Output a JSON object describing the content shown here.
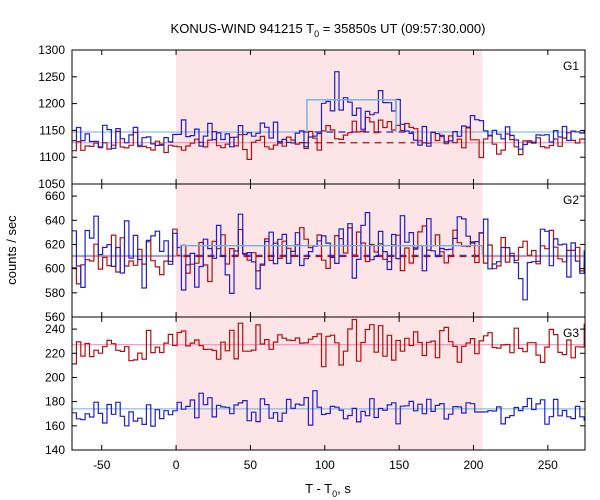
{
  "chart_data": {
    "type": "line",
    "title": "KONUS-WIND 941215 T",
    "title_sub": "0",
    "title_rest": " = 35850s UT (09:57:30.000)",
    "ylabel": "counts / sec",
    "xlabel": "T - T",
    "xlabel_sub": "0",
    "xlabel_rest": ", s",
    "xlim": [
      -70,
      275
    ],
    "xticks": [
      -50,
      0,
      50,
      100,
      150,
      200,
      250
    ],
    "highlight": {
      "from": 0,
      "to": 206,
      "color": "#fde4e6"
    },
    "colors": {
      "red": "#b01010",
      "blue": "#2020c8",
      "pink": "#f080b0",
      "cyan": "#70b0e0"
    },
    "panels": [
      {
        "name": "G1",
        "ylim": [
          1050,
          1300
        ],
        "yticks": [
          1050,
          1100,
          1150,
          1200,
          1250,
          1300
        ],
        "series": [
          {
            "color": "red",
            "base": 1126,
            "noise": 11,
            "seed": 11,
            "bumps": [
              {
                "from": 95,
                "to": 160,
                "add": 28
              }
            ]
          },
          {
            "color": "blue",
            "base": 1140,
            "noise": 14,
            "seed": 23,
            "bumps": [
              {
                "from": 95,
                "to": 150,
                "add": 65
              },
              {
                "from": 190,
                "to": 206,
                "add": 25
              }
            ]
          }
        ],
        "backgrounds": [
          {
            "color": "pink",
            "value": 1127,
            "dashed_from": 85,
            "dashed_to": 160
          },
          {
            "color": "cyan",
            "value": 1147,
            "dashed_from": 85,
            "dashed_to": 160
          }
        ],
        "model": [
          {
            "from": 88,
            "to": 148,
            "value": 1207
          }
        ]
      },
      {
        "name": "G2",
        "ylim": [
          560,
          670
        ],
        "yticks": [
          560,
          580,
          600,
          620,
          640,
          660
        ],
        "series": [
          {
            "color": "red",
            "base": 610,
            "noise": 10,
            "seed": 37,
            "bumps": [
              {
                "from": 60,
                "to": 206,
                "add": 8
              }
            ]
          },
          {
            "color": "blue",
            "base": 612,
            "noise": 15,
            "seed": 41,
            "bumps": [
              {
                "from": 60,
                "to": 206,
                "add": 9
              }
            ]
          }
        ],
        "backgrounds": [
          {
            "color": "pink",
            "value": 610,
            "dashed_from": 5,
            "dashed_to": 206
          },
          {
            "color": "cyan",
            "value": 611,
            "dashed_from": 5,
            "dashed_to": 206
          }
        ],
        "model": [
          {
            "from": 3,
            "to": 206,
            "value": 619
          }
        ]
      },
      {
        "name": "G3",
        "ylim": [
          140,
          250
        ],
        "yticks": [
          140,
          160,
          180,
          200,
          220,
          240
        ],
        "series": [
          {
            "color": "red",
            "base": 228,
            "noise": 8,
            "seed": 53,
            "bumps": []
          },
          {
            "color": "blue",
            "base": 173,
            "noise": 6,
            "seed": 67,
            "bumps": []
          }
        ],
        "backgrounds": [
          {
            "color": "pink",
            "value": 227
          },
          {
            "color": "cyan",
            "value": 174
          }
        ],
        "model": []
      }
    ],
    "grid": false,
    "legend": "none"
  }
}
